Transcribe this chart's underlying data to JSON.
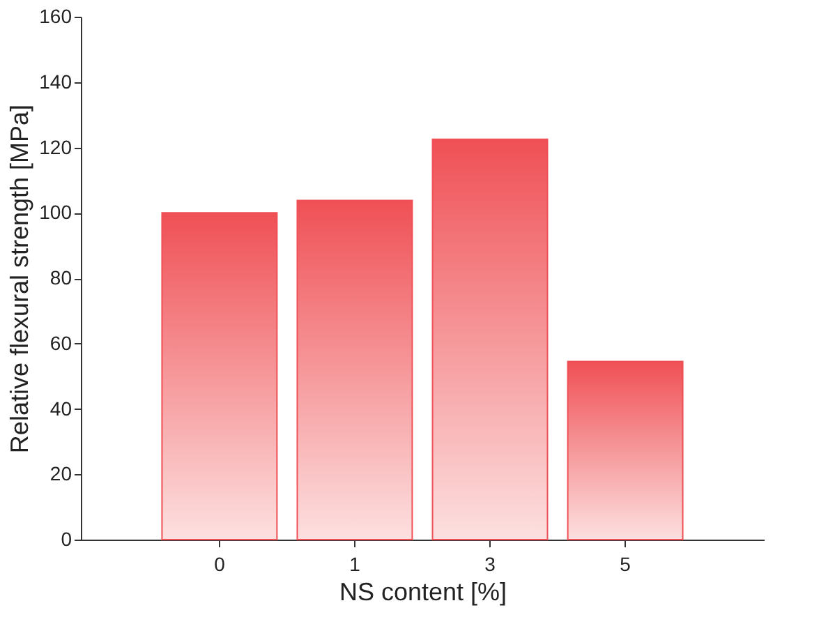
{
  "chart_data": {
    "type": "bar",
    "xlabel": "NS content [%]",
    "ylabel": "Relative flexural strength [MPa]",
    "categories": [
      "0",
      "1",
      "3",
      "5"
    ],
    "values": [
      100,
      103.8,
      122.5,
      54.5
    ],
    "color": "#ef5055",
    "ylim": [
      0,
      160
    ],
    "yticks": [
      0,
      20,
      40,
      60,
      80,
      100,
      120,
      140,
      160
    ],
    "grid": false
  }
}
